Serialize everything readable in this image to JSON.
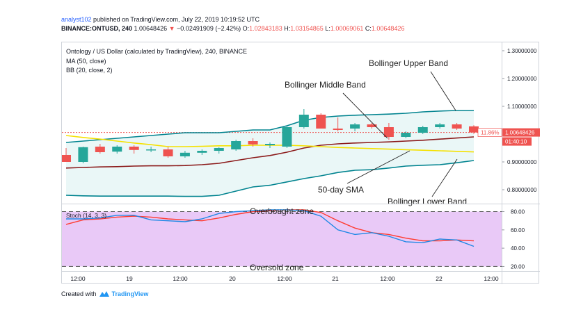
{
  "header": {
    "author": "analyst102",
    "published": " published on TradingView.com, July 22, 2019 10:19:52 UTC",
    "symbol": "BINANCE:ONTUSD, 240",
    "last": "1.00648426",
    "change_arrow": "▼",
    "change": "−0.02491909 (−2.42%)",
    "o_label": "O:",
    "o": "1.02843183",
    "h_label": "H:",
    "h": "1.03154865",
    "l_label": "L:",
    "l": "1.00069061",
    "c_label": "C:",
    "c": "1.00648426"
  },
  "legend": {
    "title": "Ontology / US Dollar (calculated by TradingView), 240, BINANCE",
    "ma": "MA (50, close)",
    "bb": "BB (20, close, 2)",
    "stoch": "Stoch (14, 3, 3)"
  },
  "price_tags": {
    "last": "1.00648426",
    "pct": "11.86%",
    "countdown": "01:40:10"
  },
  "annotations": {
    "upper": "Bollinger Upper Band",
    "middle": "Bollinger Middle Band",
    "sma": "50-day SMA",
    "lower": "Bollinger Lower Band",
    "overbought": "Overbought zone",
    "oversold": "Oversold zone"
  },
  "footer": {
    "created": "Created with",
    "brand": "TradingView"
  },
  "colors": {
    "up": "#26a69a",
    "down": "#ef5350",
    "bb_band": "#00838f",
    "bb_mid": "#8b1a1a",
    "sma": "#f5e100",
    "stoch_k": "#1e88e5",
    "stoch_d": "#ff3b30",
    "stoch_bg": "#e9c9f7"
  },
  "chart_data": [
    {
      "type": "candlestick",
      "title": "Ontology / US Dollar (calculated by TradingView), 240, BINANCE",
      "x_ticks": [
        "12:00",
        "19",
        "12:00",
        "20",
        "12:00",
        "21",
        "12:00",
        "22",
        "12:00"
      ],
      "y_ticks": [
        "1.30000000",
        "1.20000000",
        "1.10000000",
        "1.00000000",
        "0.90000000",
        "0.80000000"
      ],
      "ylim": [
        0.75,
        1.33
      ],
      "candles": [
        {
          "o": 0.925,
          "h": 0.95,
          "l": 0.9,
          "c": 0.9
        },
        {
          "o": 0.9,
          "h": 0.955,
          "l": 0.895,
          "c": 0.953
        },
        {
          "o": 0.955,
          "h": 0.965,
          "l": 0.93,
          "c": 0.935
        },
        {
          "o": 0.937,
          "h": 0.96,
          "l": 0.93,
          "c": 0.955
        },
        {
          "o": 0.955,
          "h": 0.96,
          "l": 0.93,
          "c": 0.943
        },
        {
          "o": 0.945,
          "h": 0.955,
          "l": 0.935,
          "c": 0.945
        },
        {
          "o": 0.945,
          "h": 0.955,
          "l": 0.915,
          "c": 0.92
        },
        {
          "o": 0.92,
          "h": 0.94,
          "l": 0.915,
          "c": 0.933
        },
        {
          "o": 0.933,
          "h": 0.945,
          "l": 0.925,
          "c": 0.94
        },
        {
          "o": 0.94,
          "h": 0.953,
          "l": 0.93,
          "c": 0.95
        },
        {
          "o": 0.945,
          "h": 0.98,
          "l": 0.94,
          "c": 0.975
        },
        {
          "o": 0.975,
          "h": 0.985,
          "l": 0.955,
          "c": 0.963
        },
        {
          "o": 0.96,
          "h": 0.97,
          "l": 0.95,
          "c": 0.965
        },
        {
          "o": 0.955,
          "h": 1.03,
          "l": 0.95,
          "c": 1.025
        },
        {
          "o": 1.025,
          "h": 1.09,
          "l": 1.02,
          "c": 1.07
        },
        {
          "o": 1.07,
          "h": 1.075,
          "l": 1.02,
          "c": 1.02
        },
        {
          "o": 1.02,
          "h": 1.06,
          "l": 1.01,
          "c": 1.015
        },
        {
          "o": 1.02,
          "h": 1.04,
          "l": 1.01,
          "c": 1.035
        },
        {
          "o": 1.035,
          "h": 1.04,
          "l": 1.02,
          "c": 1.025
        },
        {
          "o": 1.025,
          "h": 1.04,
          "l": 0.98,
          "c": 0.99
        },
        {
          "o": 0.99,
          "h": 1.01,
          "l": 0.985,
          "c": 1.005
        },
        {
          "o": 1.005,
          "h": 1.03,
          "l": 1.0,
          "c": 1.025
        },
        {
          "o": 1.025,
          "h": 1.04,
          "l": 1.02,
          "c": 1.035
        },
        {
          "o": 1.035,
          "h": 1.04,
          "l": 1.015,
          "c": 1.02
        },
        {
          "o": 1.028,
          "h": 1.032,
          "l": 1.001,
          "c": 1.006
        }
      ],
      "bb_upper": [
        0.97,
        0.975,
        0.98,
        0.985,
        0.99,
        0.995,
        1.0,
        1.005,
        1.005,
        1.005,
        1.01,
        1.015,
        1.015,
        1.03,
        1.05,
        1.06,
        1.065,
        1.068,
        1.07,
        1.072,
        1.075,
        1.08,
        1.083,
        1.085,
        1.085
      ],
      "bb_middle": [
        0.878,
        0.88,
        0.882,
        0.883,
        0.885,
        0.886,
        0.886,
        0.887,
        0.89,
        0.895,
        0.905,
        0.915,
        0.923,
        0.935,
        0.95,
        0.96,
        0.965,
        0.968,
        0.97,
        0.972,
        0.975,
        0.978,
        0.982,
        0.986,
        0.99
      ],
      "bb_lower": [
        0.78,
        0.778,
        0.777,
        0.777,
        0.777,
        0.777,
        0.777,
        0.776,
        0.776,
        0.78,
        0.795,
        0.81,
        0.816,
        0.828,
        0.84,
        0.85,
        0.862,
        0.87,
        0.872,
        0.878,
        0.885,
        0.888,
        0.89,
        0.897,
        0.905
      ],
      "sma50": [
        0.995,
        0.988,
        0.982,
        0.975,
        0.968,
        0.962,
        0.955,
        0.955,
        0.956,
        0.958,
        0.958,
        0.96,
        0.96,
        0.96,
        0.958,
        0.955,
        0.952,
        0.95,
        0.948,
        0.946,
        0.944,
        0.942,
        0.94,
        0.938,
        0.936
      ]
    },
    {
      "type": "line",
      "title": "Stoch (14, 3, 3)",
      "y_ticks": [
        "80.00",
        "60.00",
        "40.00",
        "20.00"
      ],
      "ylim": [
        15,
        88
      ],
      "bands": {
        "overbought": 80,
        "oversold": 20
      },
      "series": [
        {
          "values": [
            72,
            72,
            73,
            76,
            76,
            71,
            70,
            69,
            72,
            78,
            80,
            81,
            82,
            82,
            81,
            75,
            60,
            55,
            57,
            53,
            47,
            46,
            50,
            49,
            42
          ]
        },
        {
          "values": [
            66,
            71,
            72,
            74,
            75,
            74,
            72,
            71,
            70,
            73,
            77,
            80,
            81,
            82,
            82,
            79,
            70,
            62,
            57,
            55,
            51,
            48,
            48,
            49,
            48
          ]
        }
      ]
    }
  ]
}
